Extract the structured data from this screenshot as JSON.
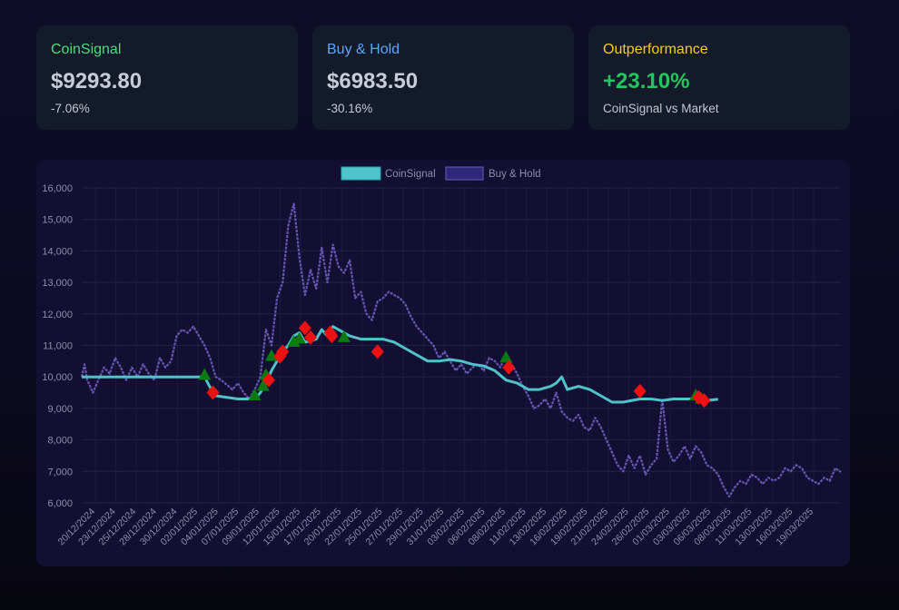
{
  "cards": {
    "coinsignal": {
      "title": "CoinSignal",
      "value": "$9293.80",
      "change": "-7.06%"
    },
    "buyhold": {
      "title": "Buy & Hold",
      "value": "$6983.50",
      "change": "-30.16%"
    },
    "outperformance": {
      "title": "Outperformance",
      "value": "+23.10%",
      "note": "CoinSignal vs Market"
    }
  },
  "colors": {
    "coinsignal_title": "#4ade80",
    "buyhold_title": "#60a5fa",
    "outperf_title": "#facc15",
    "outperf_value": "#22c55e",
    "coinsignal_line": "#4fc3c9",
    "buyhold_line": "#6a5bb8",
    "buy_marker": "#0a7a12",
    "sell_marker": "#ee1111"
  },
  "chart_data": {
    "type": "line",
    "title": "",
    "legend": [
      "CoinSignal",
      "Buy & Hold"
    ],
    "legend_position": "top-center",
    "ylim": [
      6000,
      16000
    ],
    "yticks": [
      6000,
      7000,
      8000,
      9000,
      10000,
      11000,
      12000,
      13000,
      14000,
      15000,
      16000
    ],
    "grid": true,
    "x_start": "2024-12-20",
    "x_end": "2025-03-21",
    "xtick_labels": [
      "20/12/2024",
      "23/12/2024",
      "25/12/2024",
      "28/12/2024",
      "30/12/2024",
      "02/01/2025",
      "04/01/2025",
      "07/01/2025",
      "09/01/2025",
      "12/01/2025",
      "15/01/2025",
      "17/01/2025",
      "20/01/2025",
      "22/01/2025",
      "25/01/2025",
      "27/01/2025",
      "29/01/2025",
      "31/01/2025",
      "03/02/2025",
      "06/02/2025",
      "08/02/2025",
      "11/02/2025",
      "13/02/2025",
      "16/02/2025",
      "19/02/2025",
      "21/02/2025",
      "24/02/2025",
      "26/02/2025",
      "01/03/2025",
      "03/03/2025",
      "06/03/2025",
      "08/03/2025",
      "11/03/2025",
      "13/03/2025",
      "16/03/2025",
      "19/03/2025"
    ],
    "series": [
      {
        "name": "CoinSignal",
        "points": [
          [
            0,
            10000
          ],
          [
            22,
            10000
          ],
          [
            23.5,
            9500
          ],
          [
            24,
            9400
          ],
          [
            28,
            9300
          ],
          [
            31,
            9300
          ],
          [
            32,
            9500
          ],
          [
            33,
            9800
          ],
          [
            34,
            10200
          ],
          [
            35,
            10500
          ],
          [
            36,
            10800
          ],
          [
            37,
            11000
          ],
          [
            38,
            11300
          ],
          [
            39,
            11400
          ],
          [
            40,
            11100
          ],
          [
            42,
            11200
          ],
          [
            43,
            11500
          ],
          [
            44,
            11300
          ],
          [
            45,
            11600
          ],
          [
            47,
            11400
          ],
          [
            48,
            11300
          ],
          [
            50,
            11200
          ],
          [
            52,
            11200
          ],
          [
            54,
            11200
          ],
          [
            56,
            11100
          ],
          [
            58,
            10900
          ],
          [
            60,
            10700
          ],
          [
            62,
            10500
          ],
          [
            64,
            10500
          ],
          [
            66,
            10550
          ],
          [
            68,
            10500
          ],
          [
            70,
            10400
          ],
          [
            72,
            10350
          ],
          [
            74,
            10200
          ],
          [
            76,
            9900
          ],
          [
            78,
            9800
          ],
          [
            80,
            9600
          ],
          [
            82,
            9600
          ],
          [
            84,
            9700
          ],
          [
            85,
            9800
          ],
          [
            86,
            10000
          ],
          [
            87,
            9600
          ],
          [
            89,
            9700
          ],
          [
            91,
            9600
          ],
          [
            93,
            9400
          ],
          [
            95,
            9200
          ],
          [
            97,
            9200
          ],
          [
            100,
            9300
          ],
          [
            102,
            9300
          ],
          [
            104,
            9250
          ],
          [
            106,
            9300
          ],
          [
            108,
            9300
          ],
          [
            110,
            9300
          ],
          [
            112,
            9250
          ],
          [
            114,
            9293.8
          ]
        ]
      },
      {
        "name": "Buy & Hold",
        "points": [
          [
            0,
            10000
          ],
          [
            0.5,
            10400
          ],
          [
            1,
            9900
          ],
          [
            2,
            9500
          ],
          [
            3,
            9900
          ],
          [
            4,
            10300
          ],
          [
            5,
            10100
          ],
          [
            6,
            10600
          ],
          [
            7,
            10300
          ],
          [
            8,
            9900
          ],
          [
            9,
            10300
          ],
          [
            10,
            10000
          ],
          [
            11,
            10400
          ],
          [
            12,
            10100
          ],
          [
            13,
            9900
          ],
          [
            14,
            10600
          ],
          [
            15,
            10300
          ],
          [
            16,
            10500
          ],
          [
            17,
            11300
          ],
          [
            18,
            11500
          ],
          [
            19,
            11400
          ],
          [
            20,
            11600
          ],
          [
            21,
            11300
          ],
          [
            22,
            11000
          ],
          [
            23,
            10600
          ],
          [
            24,
            10000
          ],
          [
            25,
            9900
          ],
          [
            27,
            9600
          ],
          [
            28,
            9800
          ],
          [
            29,
            9500
          ],
          [
            30,
            9300
          ],
          [
            31,
            9600
          ],
          [
            32,
            10000
          ],
          [
            33,
            11500
          ],
          [
            34,
            11000
          ],
          [
            35,
            12500
          ],
          [
            36,
            13000
          ],
          [
            37,
            14800
          ],
          [
            38,
            15500
          ],
          [
            39,
            13800
          ],
          [
            40,
            12600
          ],
          [
            41,
            13400
          ],
          [
            42,
            12800
          ],
          [
            43,
            14100
          ],
          [
            44,
            13000
          ],
          [
            45,
            14200
          ],
          [
            46,
            13500
          ],
          [
            47,
            13300
          ],
          [
            48,
            13700
          ],
          [
            49,
            12500
          ],
          [
            50,
            12700
          ],
          [
            51,
            12000
          ],
          [
            52,
            11800
          ],
          [
            53,
            12400
          ],
          [
            54,
            12500
          ],
          [
            55,
            12700
          ],
          [
            56,
            12600
          ],
          [
            57,
            12500
          ],
          [
            58,
            12300
          ],
          [
            59,
            11900
          ],
          [
            60,
            11600
          ],
          [
            61,
            11400
          ],
          [
            62,
            11200
          ],
          [
            63,
            11000
          ],
          [
            64,
            10600
          ],
          [
            65,
            10800
          ],
          [
            66,
            10500
          ],
          [
            67,
            10200
          ],
          [
            68,
            10400
          ],
          [
            69,
            10100
          ],
          [
            70,
            10300
          ],
          [
            71,
            10400
          ],
          [
            72,
            10200
          ],
          [
            73,
            10600
          ],
          [
            74,
            10500
          ],
          [
            75,
            10300
          ],
          [
            76,
            10700
          ],
          [
            77,
            10400
          ],
          [
            78,
            10100
          ],
          [
            79,
            9700
          ],
          [
            80,
            9400
          ],
          [
            81,
            9000
          ],
          [
            82,
            9100
          ],
          [
            83,
            9300
          ],
          [
            84,
            9000
          ],
          [
            85,
            9500
          ],
          [
            86,
            8900
          ],
          [
            87,
            8700
          ],
          [
            88,
            8600
          ],
          [
            89,
            8800
          ],
          [
            90,
            8400
          ],
          [
            91,
            8300
          ],
          [
            92,
            8700
          ],
          [
            93,
            8400
          ],
          [
            94,
            8000
          ],
          [
            95,
            7600
          ],
          [
            96,
            7200
          ],
          [
            97,
            7000
          ],
          [
            98,
            7500
          ],
          [
            99,
            7100
          ],
          [
            100,
            7500
          ],
          [
            101,
            6900
          ],
          [
            102,
            7200
          ],
          [
            103,
            7400
          ],
          [
            104,
            9300
          ],
          [
            105,
            7700
          ],
          [
            106,
            7300
          ],
          [
            107,
            7500
          ],
          [
            108,
            7800
          ],
          [
            109,
            7400
          ],
          [
            110,
            7800
          ],
          [
            111,
            7600
          ],
          [
            112,
            7200
          ],
          [
            113,
            7100
          ],
          [
            114,
            6900
          ],
          [
            115,
            6500
          ],
          [
            116,
            6200
          ],
          [
            117,
            6500
          ],
          [
            118,
            6700
          ],
          [
            119,
            6600
          ],
          [
            120,
            6900
          ],
          [
            121,
            6800
          ],
          [
            122,
            6600
          ],
          [
            123,
            6800
          ],
          [
            124,
            6700
          ],
          [
            125,
            6800
          ],
          [
            126,
            7100
          ],
          [
            127,
            7000
          ],
          [
            128,
            7200
          ],
          [
            129,
            7100
          ],
          [
            130,
            6800
          ],
          [
            131,
            6700
          ],
          [
            132,
            6600
          ],
          [
            133,
            6800
          ],
          [
            134,
            6700
          ],
          [
            135,
            7100
          ],
          [
            136,
            6983.5
          ]
        ]
      }
    ],
    "buy_signals": [
      [
        22,
        10050
      ],
      [
        31,
        9400
      ],
      [
        32.5,
        9700
      ],
      [
        33,
        10050
      ],
      [
        34,
        10650
      ],
      [
        38,
        11100
      ],
      [
        39,
        11200
      ],
      [
        47,
        11250
      ],
      [
        76,
        10600
      ],
      [
        110,
        9400
      ],
      [
        111,
        9300
      ]
    ],
    "sell_signals": [
      [
        23.5,
        9500
      ],
      [
        33.5,
        9900
      ],
      [
        35.5,
        10650
      ],
      [
        36,
        10800
      ],
      [
        40,
        11550
      ],
      [
        41,
        11250
      ],
      [
        44.5,
        11400
      ],
      [
        44.8,
        11300
      ],
      [
        53,
        10800
      ],
      [
        76.5,
        10300
      ],
      [
        100,
        9550
      ],
      [
        110.5,
        9350
      ],
      [
        111.5,
        9250
      ]
    ],
    "x_max": 136
  }
}
